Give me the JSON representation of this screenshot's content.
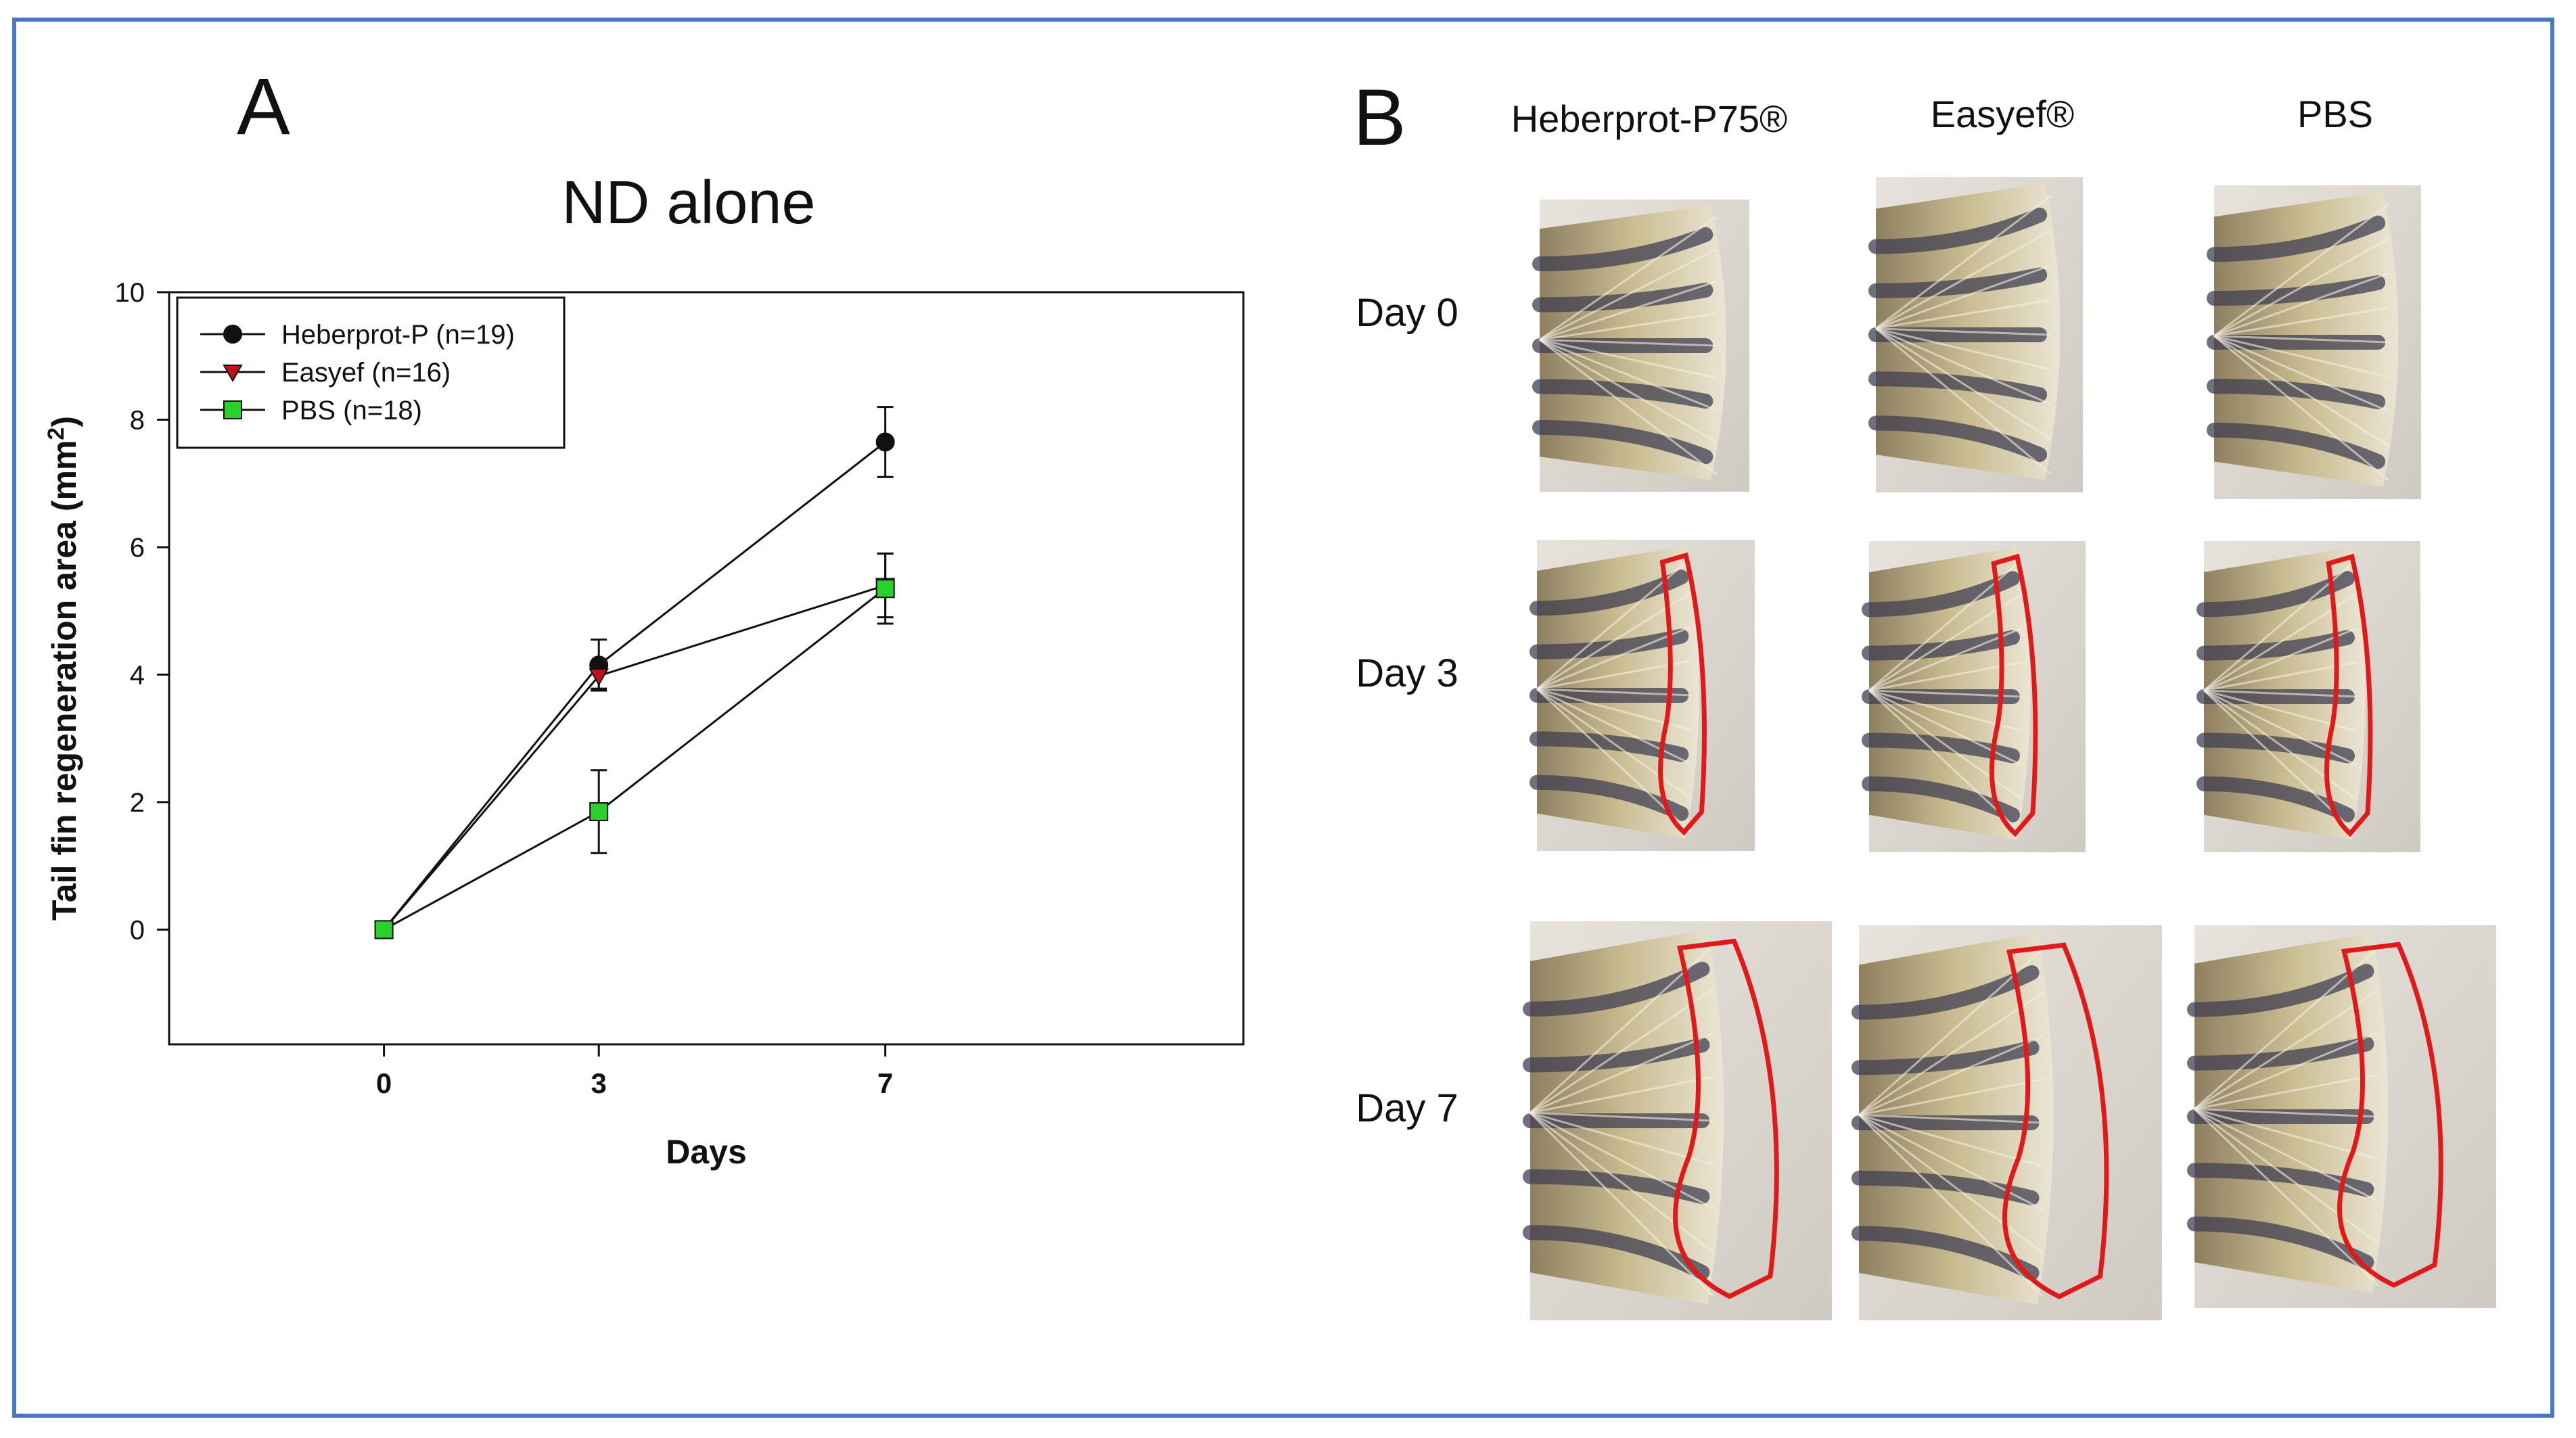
{
  "panel_a": {
    "label": "A"
  },
  "panel_b": {
    "label": "B",
    "columns": [
      "Heberprot-P75®",
      "Easyef®",
      "PBS"
    ],
    "rows": [
      "Day 0",
      "Day 3",
      "Day 7"
    ],
    "outline_color": "#e0191b"
  },
  "chart_data": {
    "type": "line",
    "title": "ND alone",
    "xlabel": "Days",
    "ylabel": "Tail fin regeneration area (mm²)",
    "ylabel_text": "Tail fin regeneration area (mm",
    "ylabel_sup": "2",
    "ylabel_close": ")",
    "x": [
      0,
      3,
      7
    ],
    "x_tick_labels": [
      "0",
      "3",
      "7"
    ],
    "y_ticks": [
      0,
      2,
      4,
      6,
      8,
      10
    ],
    "y_tick_labels": [
      "0",
      "2",
      "4",
      "6",
      "8",
      "10"
    ],
    "xlim": [
      -3,
      12
    ],
    "ylim": [
      -1.8,
      10
    ],
    "legend_position": "top-left",
    "series": [
      {
        "name": "Heberprot-P (n=19)",
        "marker": "circle",
        "color": "#111111",
        "values": [
          0,
          4.15,
          7.65
        ],
        "error": [
          0,
          0.4,
          0.55
        ]
      },
      {
        "name": "Easyef (n=16)",
        "marker": "triangle-down",
        "color": "#c0141c",
        "values": [
          0,
          3.98,
          5.4
        ],
        "error": [
          0,
          0.2,
          0.5
        ]
      },
      {
        "name": "PBS (n=18)",
        "marker": "square",
        "color": "#2bd12b",
        "values": [
          0,
          1.85,
          5.35
        ],
        "error": [
          0,
          0.65,
          0.55
        ]
      }
    ]
  }
}
